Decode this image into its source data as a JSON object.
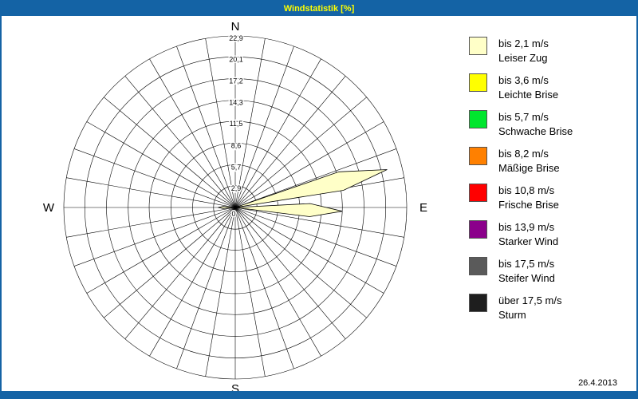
{
  "window": {
    "title": "Windstatistik [%]",
    "date": "26.4.2013"
  },
  "colors": {
    "titlebar": "#1463A5",
    "title_text": "#FFFF00",
    "frame": "#1463A5",
    "background": "#FFFFFF"
  },
  "legend": {
    "items": [
      {
        "color": "#FFFFC8",
        "line1": "bis 2,1 m/s",
        "line2": "Leiser Zug"
      },
      {
        "color": "#FFFF00",
        "line1": "bis 3,6 m/s",
        "line2": "Leichte Brise"
      },
      {
        "color": "#00E62E",
        "line1": "bis 5,7 m/s",
        "line2": "Schwache Brise"
      },
      {
        "color": "#FF8000",
        "line1": "bis 8,2 m/s",
        "line2": "Mäßige Brise"
      },
      {
        "color": "#FF0000",
        "line1": "bis 10,8 m/s",
        "line2": "Frische Brise"
      },
      {
        "color": "#8B008B",
        "line1": "bis 13,9 m/s",
        "line2": "Starker Wind"
      },
      {
        "color": "#5A5A5A",
        "line1": "bis 17,5 m/s",
        "line2": "Steifer Wind"
      },
      {
        "color": "#1E1E1E",
        "line1": "über 17,5 m/s",
        "line2": "Sturm"
      }
    ]
  },
  "chart_data": {
    "type": "wind-rose",
    "title": "Windstatistik [%]",
    "unit": "%",
    "sectors": 36,
    "ring_values": [
      2.9,
      5.7,
      8.6,
      11.5,
      14.3,
      17.2,
      20.1,
      22.9
    ],
    "ring_labels": [
      "2,9",
      "5,7",
      "8,6",
      "11,5",
      "14,3",
      "17,2",
      "20,1",
      "22,9"
    ],
    "center_label": "0",
    "max_value": 22.9,
    "grid": true,
    "compass": {
      "north": "N",
      "east": "E",
      "south": "S",
      "west": "W"
    },
    "petals": [
      {
        "direction_deg": 76,
        "value": 20.9,
        "speed_class": "bis 2,1 m/s",
        "color": "#FFFFC8"
      },
      {
        "direction_deg": 92,
        "value": 14.3,
        "speed_class": "bis 2,1 m/s",
        "color": "#FFFFC8"
      },
      {
        "direction_deg": 270,
        "value": 2.3,
        "speed_class": "bis 2,1 m/s",
        "color": "#FFFFC8"
      }
    ]
  }
}
